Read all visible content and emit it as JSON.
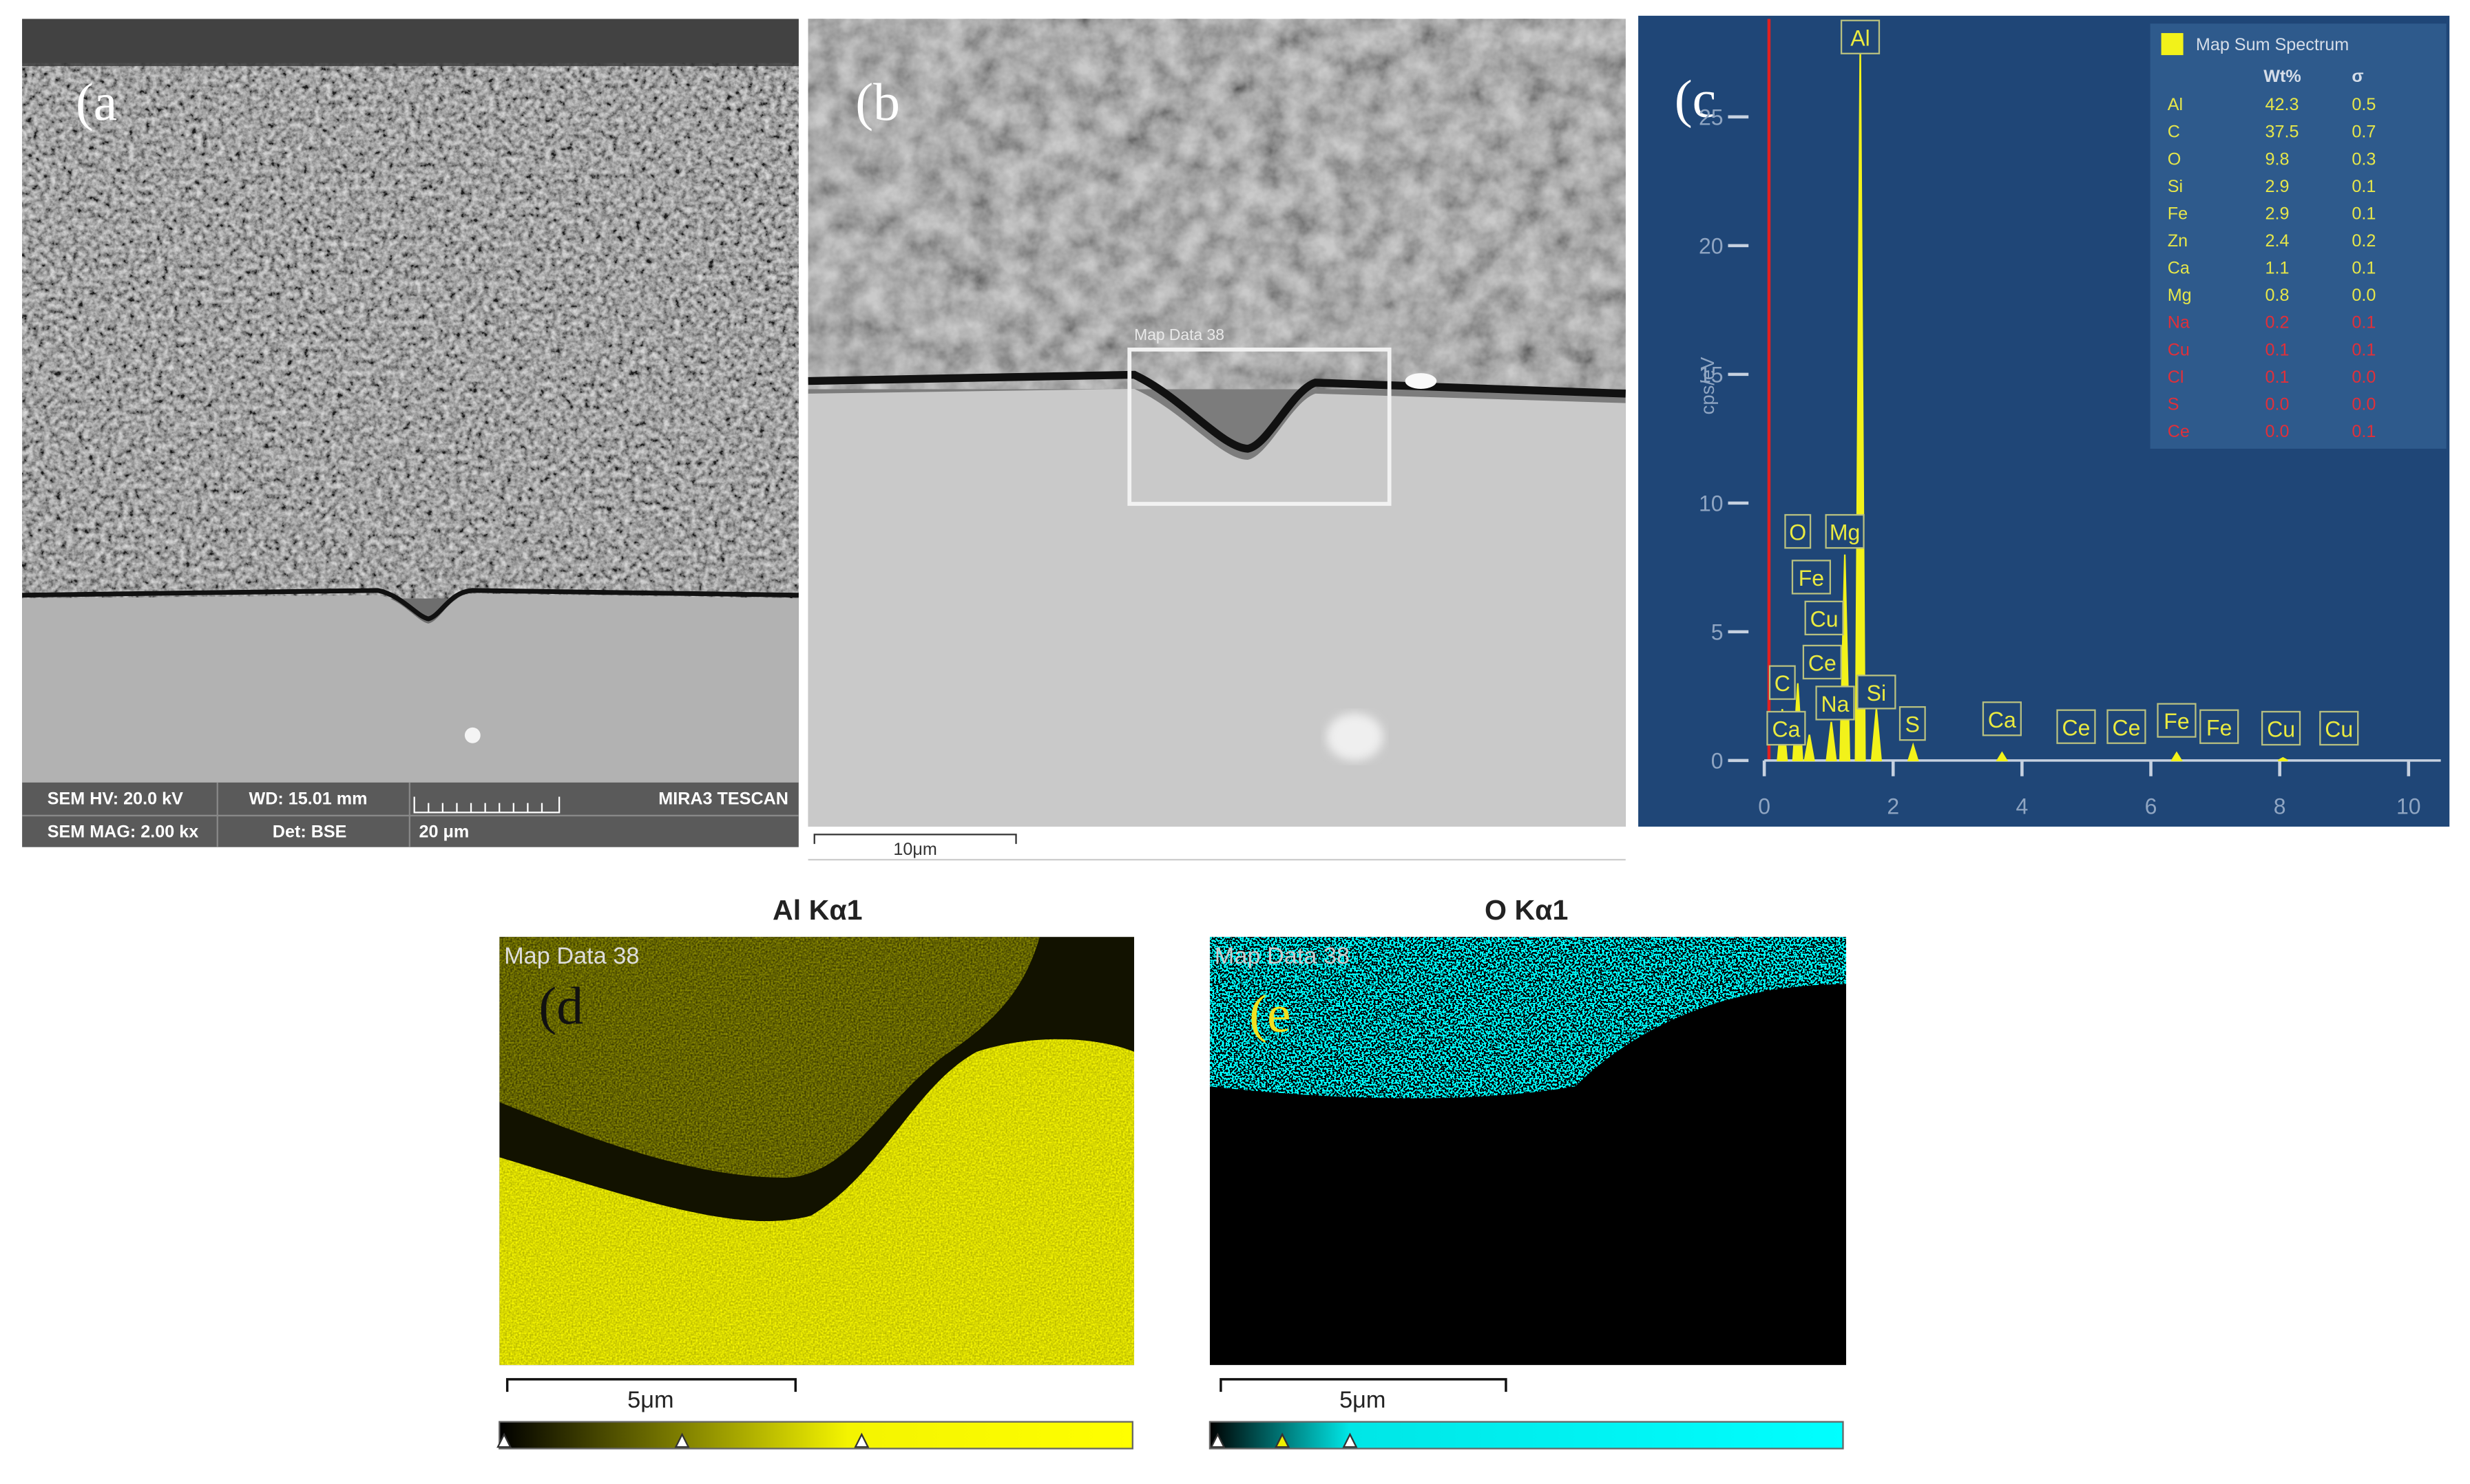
{
  "panel_a": {
    "label": "(a",
    "info": {
      "hv": "SEM HV: 20.0 kV",
      "wd": "WD: 15.01 mm",
      "brand": "MIRA3 TESCAN",
      "mag": "SEM MAG: 2.00 kx",
      "det": "Det: BSE",
      "scale": "20 μm"
    }
  },
  "panel_b": {
    "label": "(b",
    "roi": "Map Data 38",
    "scale": "10μm"
  },
  "panel_c": {
    "label": "(c"
  },
  "chart_data": {
    "type": "spectrum",
    "y_label": "cps/eV",
    "xlim": [
      0,
      10.5
    ],
    "ylim": [
      0,
      28
    ],
    "xticks": [
      0,
      2,
      4,
      6,
      8,
      10
    ],
    "yticks": [
      0,
      5,
      10,
      15,
      20,
      25
    ],
    "series": [
      {
        "name": "Map Sum Spectrum",
        "color": "#f2f21a",
        "x": [
          0.28,
          0.52,
          0.7,
          1.04,
          1.25,
          1.49,
          1.74,
          2.31,
          3.69,
          6.4,
          8.05
        ],
        "values": [
          2,
          3,
          1,
          1.5,
          8,
          28,
          2,
          0.6,
          0.3,
          0.3,
          0.1
        ]
      }
    ],
    "peak_labels": [
      {
        "label": "C",
        "energy": 0.28
      },
      {
        "label": "Ca",
        "energy": 0.34
      },
      {
        "label": "O",
        "energy": 0.52
      },
      {
        "label": "Fe",
        "energy": 0.73
      },
      {
        "label": "Cu",
        "energy": 0.93
      },
      {
        "label": "Ce",
        "energy": 0.9
      },
      {
        "label": "Na",
        "energy": 1.1
      },
      {
        "label": "Mg",
        "energy": 1.25
      },
      {
        "label": "Al",
        "energy": 1.49
      },
      {
        "label": "Si",
        "energy": 1.74
      },
      {
        "label": "S",
        "energy": 2.3
      },
      {
        "label": "Ca",
        "energy": 3.69
      },
      {
        "label": "Ce",
        "energy": 4.84
      },
      {
        "label": "Ce",
        "energy": 5.62
      },
      {
        "label": "Fe",
        "energy": 6.4
      },
      {
        "label": "Fe",
        "energy": 7.06
      },
      {
        "label": "Cu",
        "energy": 8.02
      },
      {
        "label": "Cu",
        "energy": 8.92
      }
    ],
    "table": {
      "header": [
        "Wt%",
        "σ"
      ],
      "rows": [
        {
          "element": "Al",
          "wt": "42.3",
          "sigma": "0.5",
          "color": "#e6e64a"
        },
        {
          "element": "C",
          "wt": "37.5",
          "sigma": "0.7",
          "color": "#e6e64a"
        },
        {
          "element": "O",
          "wt": "9.8",
          "sigma": "0.3",
          "color": "#e6e64a"
        },
        {
          "element": "Si",
          "wt": "2.9",
          "sigma": "0.1",
          "color": "#e6e64a"
        },
        {
          "element": "Fe",
          "wt": "2.9",
          "sigma": "0.1",
          "color": "#e6e64a"
        },
        {
          "element": "Zn",
          "wt": "2.4",
          "sigma": "0.2",
          "color": "#e6e64a"
        },
        {
          "element": "Ca",
          "wt": "1.1",
          "sigma": "0.1",
          "color": "#e6e64a"
        },
        {
          "element": "Mg",
          "wt": "0.8",
          "sigma": "0.0",
          "color": "#e6e64a"
        },
        {
          "element": "Na",
          "wt": "0.2",
          "sigma": "0.1",
          "color": "#e0303a"
        },
        {
          "element": "Cu",
          "wt": "0.1",
          "sigma": "0.1",
          "color": "#e0303a"
        },
        {
          "element": "Cl",
          "wt": "0.1",
          "sigma": "0.0",
          "color": "#e0303a"
        },
        {
          "element": "S",
          "wt": "0.0",
          "sigma": "0.0",
          "color": "#e0303a"
        },
        {
          "element": "Ce",
          "wt": "0.0",
          "sigma": "0.1",
          "color": "#e0303a"
        }
      ]
    }
  },
  "panel_d": {
    "title": "Al Kα1",
    "map_label": "Map Data 38",
    "label": "(d",
    "scale": "5μm"
  },
  "panel_e": {
    "title": "O Kα1",
    "map_label": "Map Data 38",
    "label": "(e",
    "scale": "5μm"
  }
}
